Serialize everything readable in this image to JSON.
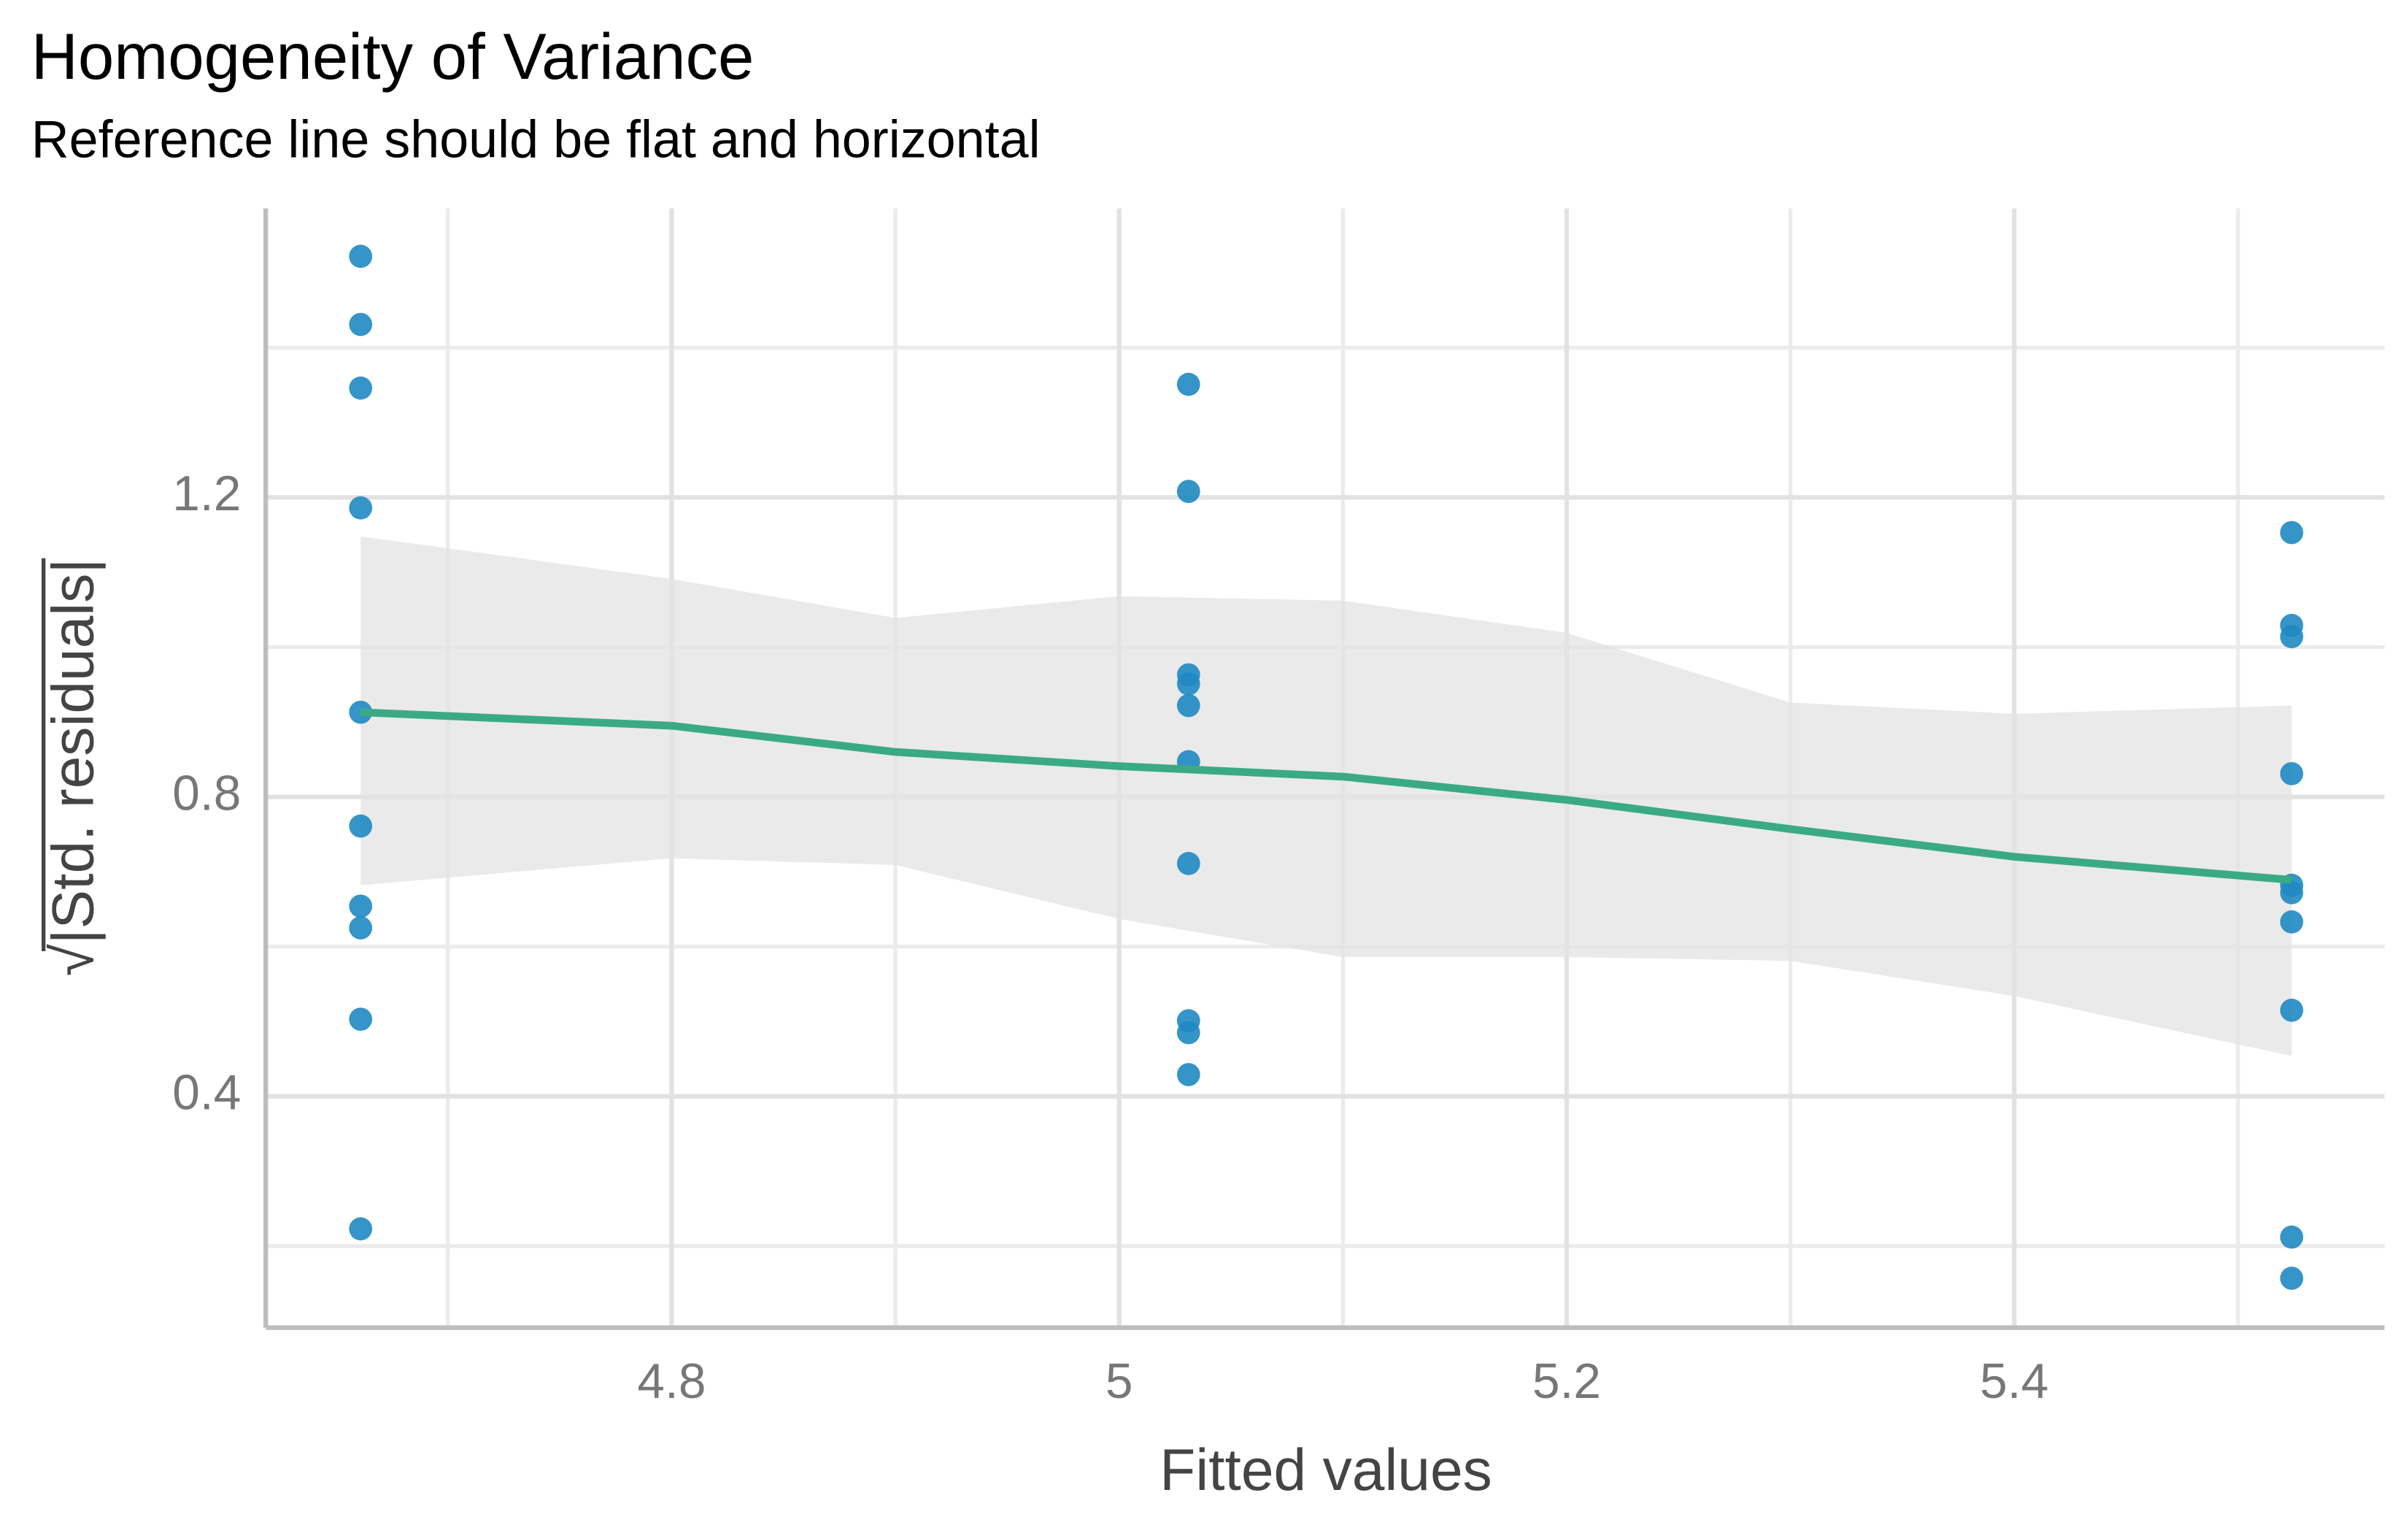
{
  "chart_data": {
    "type": "scatter",
    "title": "Homogeneity of Variance",
    "subtitle": "Reference line should be flat and horizontal",
    "x_label": "Fitted values",
    "y_label": "√|Std. residuals|",
    "xlim": [
      4.6186,
      5.5655
    ],
    "ylim": [
      0.091,
      1.586
    ],
    "xticks": [
      4.8,
      5.0,
      5.2,
      5.4
    ],
    "yticks": [
      0.4,
      0.8,
      1.2
    ],
    "x_minor_ticks": [
      4.7,
      4.9,
      5.1,
      5.3,
      5.5
    ],
    "y_minor_ticks": [
      0.2,
      0.6,
      1.0,
      1.4
    ],
    "grid": true,
    "series": [
      {
        "color": "#1f88c2",
        "x": [
          4.661,
          4.661,
          4.661,
          4.661,
          4.661,
          4.661,
          4.661,
          4.661,
          4.661,
          4.661,
          5.031,
          5.031,
          5.031,
          5.031,
          5.031,
          5.031,
          5.031,
          5.031,
          5.031,
          5.031,
          5.524,
          5.524,
          5.524,
          5.524,
          5.524,
          5.524,
          5.524,
          5.524,
          5.524,
          5.524
        ],
        "values": [
          1.522,
          1.431,
          1.346,
          1.186,
          0.913,
          0.761,
          0.654,
          0.625,
          0.503,
          0.223,
          1.351,
          1.208,
          0.963,
          0.951,
          0.922,
          0.847,
          0.711,
          0.501,
          0.485,
          0.429,
          1.153,
          1.029,
          1.014,
          0.831,
          0.682,
          0.672,
          0.633,
          0.515,
          0.212,
          0.157
        ]
      }
    ],
    "smooth": {
      "color": "#3aaa85",
      "band_color": "#e3e3e3",
      "x": [
        4.661,
        4.8,
        4.9,
        5.0,
        5.1,
        5.2,
        5.3,
        5.4,
        5.524
      ],
      "values": [
        0.913,
        0.895,
        0.86,
        0.841,
        0.827,
        0.796,
        0.757,
        0.72,
        0.689
      ],
      "lower": [
        0.682,
        0.718,
        0.709,
        0.637,
        0.586,
        0.586,
        0.581,
        0.534,
        0.454
      ],
      "upper": [
        1.148,
        1.091,
        1.039,
        1.068,
        1.062,
        1.019,
        0.926,
        0.911,
        0.922
      ]
    }
  }
}
